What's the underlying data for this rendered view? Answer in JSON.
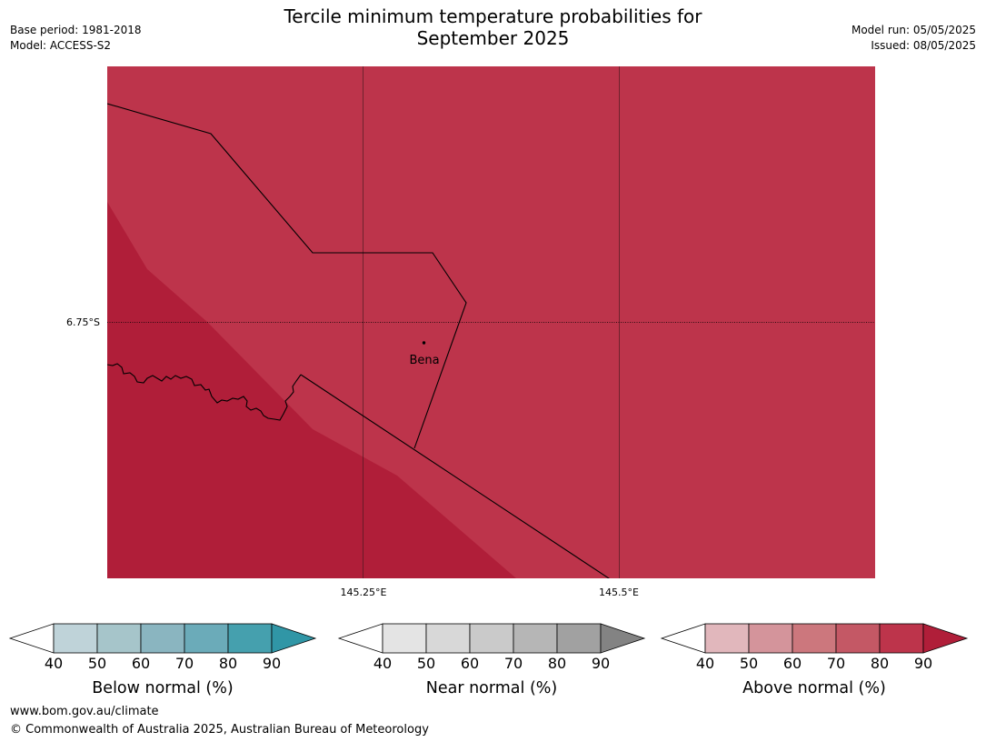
{
  "title_line1": "Tercile minimum temperature probabilities for",
  "title_line2": "September 2025",
  "base_period": "Base period: 1981-2018",
  "model": "Model: ACCESS-S2",
  "model_run": "Model run: 05/05/2025",
  "issued": "Issued: 08/05/2025",
  "map": {
    "lat_label": "6.75°S",
    "lon_labels": [
      "145.25°E",
      "145.5°E"
    ],
    "place_name": "Bena",
    "colors": {
      "area_70_80": "#bd344b",
      "area_80_90": "#b01e39"
    }
  },
  "colorbars": [
    {
      "label": "Below normal (%)",
      "ticks": [
        "40",
        "50",
        "60",
        "70",
        "80",
        "90"
      ],
      "colors": [
        "#ffffff",
        "#bfd3d9",
        "#a6c5ca",
        "#8ab5c0",
        "#6babb9",
        "#45a0ae",
        "#3096a6"
      ]
    },
    {
      "label": "Near normal (%)",
      "ticks": [
        "40",
        "50",
        "60",
        "70",
        "80",
        "90"
      ],
      "colors": [
        "#ffffff",
        "#e4e4e4",
        "#d8d8d8",
        "#cacaca",
        "#b6b6b6",
        "#a1a1a1",
        "#838383"
      ]
    },
    {
      "label": "Above normal (%)",
      "ticks": [
        "40",
        "50",
        "60",
        "70",
        "80",
        "90"
      ],
      "colors": [
        "#ffffff",
        "#e1b7bc",
        "#d4949b",
        "#cc777d",
        "#c45865",
        "#bd344b",
        "#b01e39"
      ]
    }
  ],
  "footer_url": "www.bom.gov.au/climate",
  "footer_copyright": "© Commonwealth of Australia 2025, Australian Bureau of Meteorology"
}
